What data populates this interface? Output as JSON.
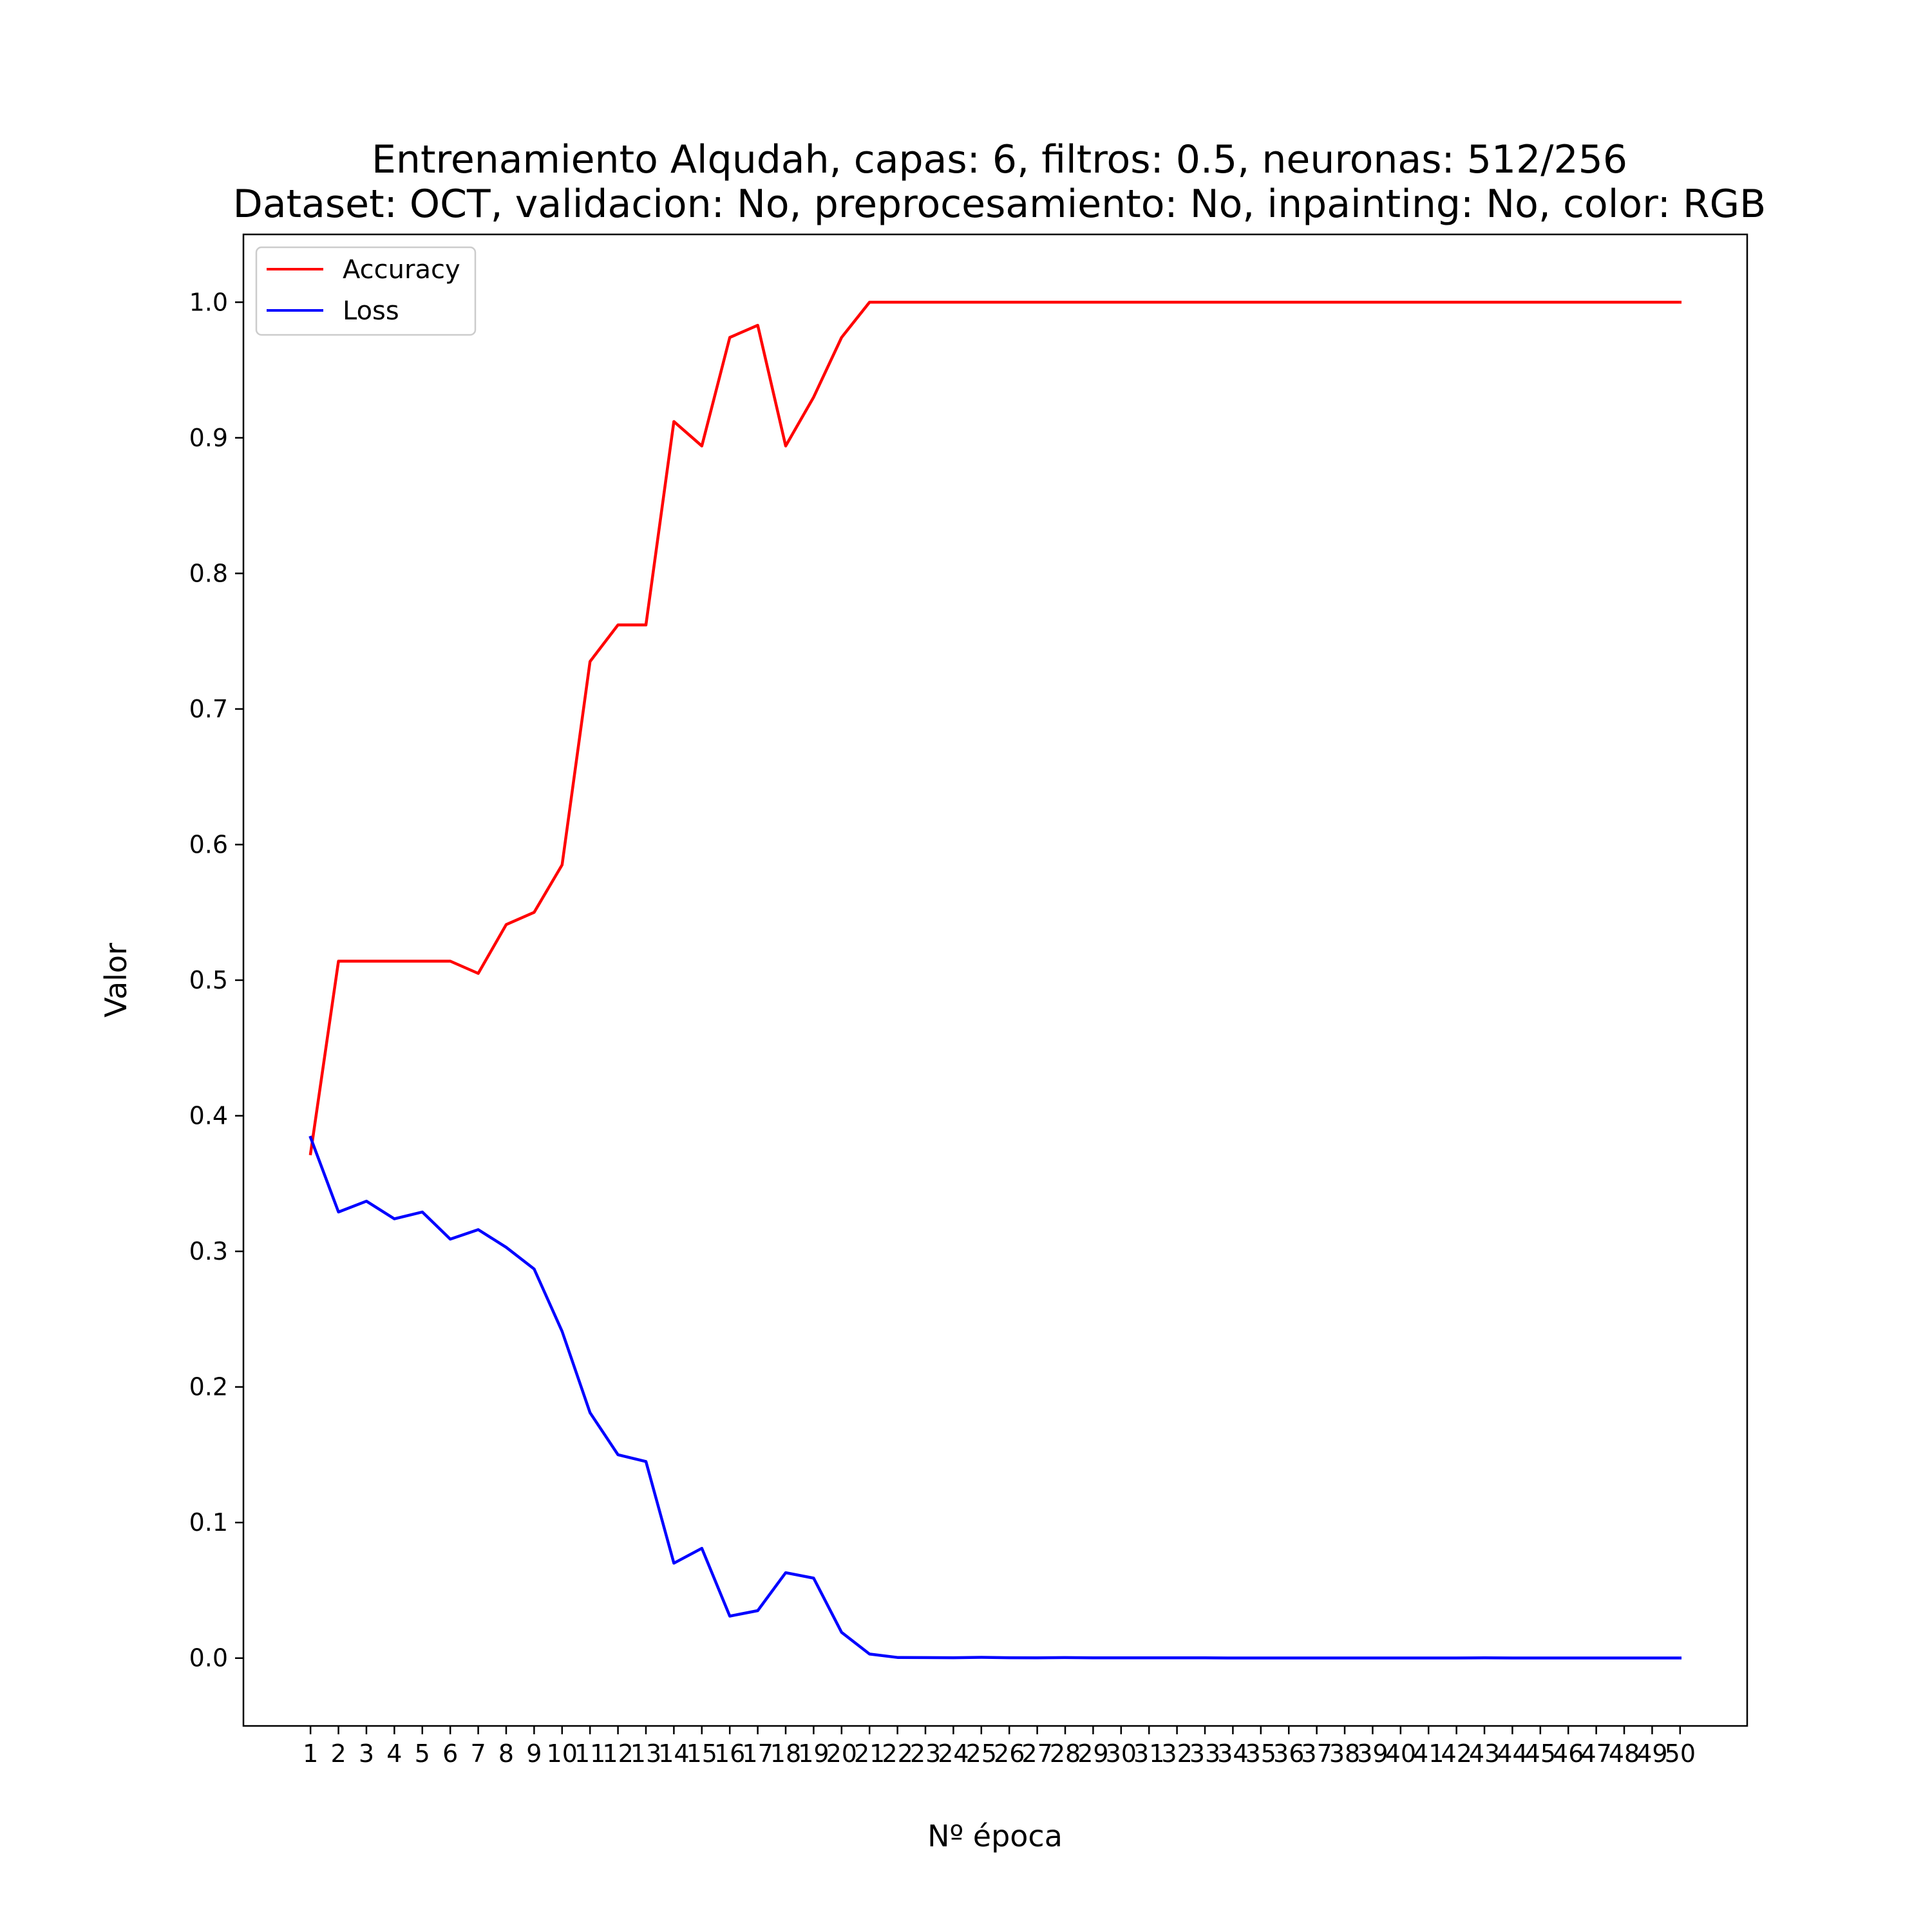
{
  "chart_data": {
    "type": "line",
    "title": "Entrenamiento Alqudah, capas: 6, filtros: 0.5, neuronas: 512/256",
    "subtitle": "Dataset: OCT, validacion: No, preprocesamiento: No, inpainting: No, color: RGB",
    "xlabel": "Nº época",
    "ylabel": "Valor",
    "xlim": [
      -1.4,
      52.4
    ],
    "ylim": [
      -0.05,
      1.05
    ],
    "yticks": [
      0.0,
      0.1,
      0.2,
      0.3,
      0.4,
      0.5,
      0.6,
      0.7,
      0.8,
      0.9,
      1.0
    ],
    "ytick_labels": [
      "0.0",
      "0.1",
      "0.2",
      "0.3",
      "0.4",
      "0.5",
      "0.6",
      "0.7",
      "0.8",
      "0.9",
      "1.0"
    ],
    "x": [
      1,
      2,
      3,
      4,
      5,
      6,
      7,
      8,
      9,
      10,
      11,
      12,
      13,
      14,
      15,
      16,
      17,
      18,
      19,
      20,
      21,
      22,
      23,
      24,
      25,
      26,
      27,
      28,
      29,
      30,
      31,
      32,
      33,
      34,
      35,
      36,
      37,
      38,
      39,
      40,
      41,
      42,
      43,
      44,
      45,
      46,
      47,
      48,
      49,
      50
    ],
    "xtick_labels": [
      "1",
      "2",
      "3",
      "4",
      "5",
      "6",
      "7",
      "8",
      "9",
      "10",
      "11",
      "12",
      "13",
      "14",
      "15",
      "16",
      "17",
      "18",
      "19",
      "20",
      "21",
      "22",
      "23",
      "24",
      "25",
      "26",
      "27",
      "28",
      "29",
      "30",
      "31",
      "32",
      "33",
      "34",
      "35",
      "36",
      "37",
      "38",
      "39",
      "40",
      "41",
      "42",
      "43",
      "44",
      "45",
      "46",
      "47",
      "48",
      "49",
      "50"
    ],
    "grid": false,
    "legend": "top-left",
    "series": [
      {
        "name": "Accuracy",
        "color": "#ff0000",
        "values": [
          0.372,
          0.514,
          0.514,
          0.514,
          0.514,
          0.514,
          0.505,
          0.541,
          0.55,
          0.585,
          0.735,
          0.762,
          0.762,
          0.912,
          0.894,
          0.974,
          0.983,
          0.894,
          0.93,
          0.974,
          1.0,
          1.0,
          1.0,
          1.0,
          1.0,
          1.0,
          1.0,
          1.0,
          1.0,
          1.0,
          1.0,
          1.0,
          1.0,
          1.0,
          1.0,
          1.0,
          1.0,
          1.0,
          1.0,
          1.0,
          1.0,
          1.0,
          1.0,
          1.0,
          1.0,
          1.0,
          1.0,
          1.0,
          1.0,
          1.0
        ]
      },
      {
        "name": "Loss",
        "color": "#0000ff",
        "values": [
          0.384,
          0.329,
          0.337,
          0.324,
          0.329,
          0.309,
          0.316,
          0.303,
          0.287,
          0.241,
          0.181,
          0.15,
          0.145,
          0.07,
          0.081,
          0.031,
          0.035,
          0.063,
          0.059,
          0.019,
          0.003,
          0.0005,
          0.0004,
          0.0003,
          0.0006,
          0.0003,
          0.0002,
          0.0004,
          0.0002,
          0.0002,
          0.0002,
          0.0002,
          0.0002,
          0.0001,
          0.0001,
          0.0001,
          0.0001,
          0.0001,
          0.0001,
          0.0001,
          0.0001,
          0.0001,
          0.0002,
          0.0001,
          0.0001,
          0.0001,
          0.0001,
          0.0001,
          0.0001,
          0.0001
        ]
      }
    ]
  }
}
